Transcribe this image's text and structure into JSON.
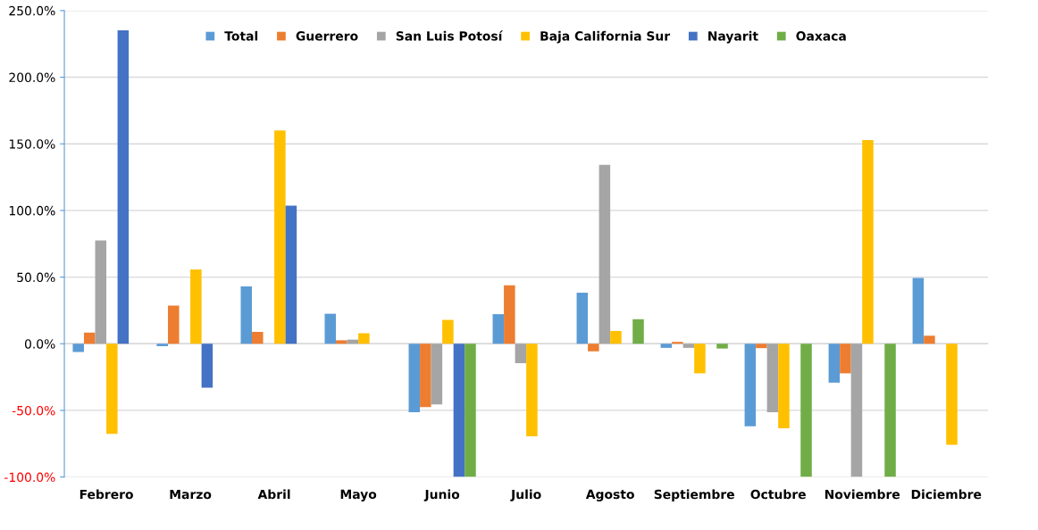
{
  "chart_data": {
    "type": "bar",
    "categories": [
      "Febrero",
      "Marzo",
      "Abril",
      "Mayo",
      "Junio",
      "Julio",
      "Agosto",
      "Septiembre",
      "Octubre",
      "Noviembre",
      "Diciembre"
    ],
    "series": [
      {
        "name": "Total",
        "color": "#5b9bd5",
        "values": [
          -6.2,
          -1.9,
          43.1,
          22.5,
          -51.4,
          22.2,
          38.3,
          -3.1,
          -62.0,
          -29.2,
          49.3
        ]
      },
      {
        "name": "Guerrero",
        "color": "#ed7d31",
        "values": [
          8.4,
          28.7,
          8.9,
          2.6,
          -47.6,
          43.8,
          -5.7,
          1.4,
          -3.3,
          -22.2,
          6.0
        ]
      },
      {
        "name": "San Luis Potosí",
        "color": "#a5a5a5",
        "values": [
          77.5,
          null,
          null,
          3.1,
          -45.5,
          -14.6,
          134.2,
          -3.1,
          -51.4,
          -100,
          null
        ]
      },
      {
        "name": "Baja California Sur",
        "color": "#ffc000",
        "values": [
          -67.7,
          55.7,
          160.0,
          7.9,
          17.9,
          -69.4,
          9.6,
          -22.2,
          -63.4,
          152.9,
          -75.8
        ]
      },
      {
        "name": "Nayarit",
        "color": "#4472c4",
        "values": [
          235.2,
          -33.0,
          103.6,
          null,
          -100,
          null,
          null,
          null,
          null,
          null,
          null
        ]
      },
      {
        "name": "Oaxaca",
        "color": "#70ad47",
        "values": [
          null,
          null,
          null,
          null,
          -100,
          null,
          18.4,
          -3.6,
          -100,
          -100,
          null
        ]
      }
    ],
    "ylim": [
      -100,
      250
    ],
    "yticks": [
      {
        "value": -100,
        "label": "-100.0%"
      },
      {
        "value": -50,
        "label": "-50.0%"
      },
      {
        "value": 0,
        "label": "0.0%"
      },
      {
        "value": 50,
        "label": "50.0%"
      },
      {
        "value": 100,
        "label": "100.0%"
      },
      {
        "value": 150,
        "label": "150.0%"
      },
      {
        "value": 200,
        "label": "200.0%"
      },
      {
        "value": 250,
        "label": "250.0%"
      }
    ],
    "grid": "y",
    "legend": "top"
  }
}
